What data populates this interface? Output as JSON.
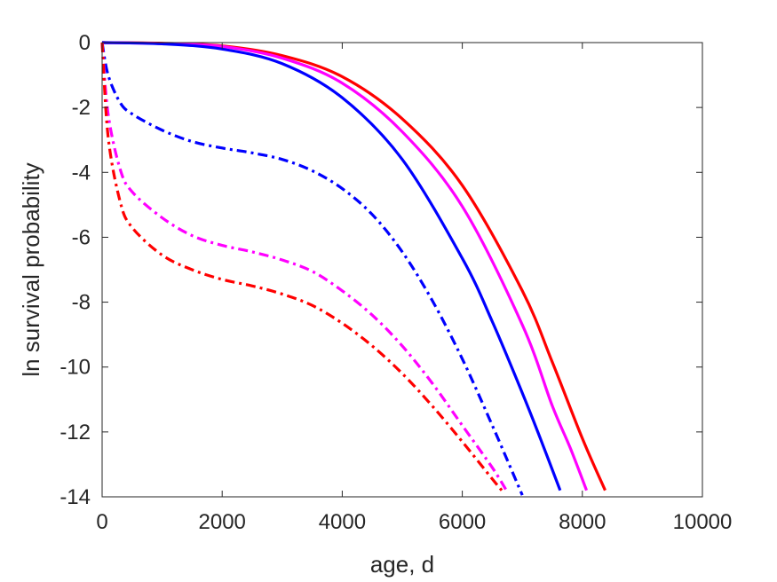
{
  "chart_data": {
    "type": "line",
    "title": "",
    "xlabel": "age, d",
    "ylabel": "ln survival probability",
    "xlim": [
      0,
      10000
    ],
    "ylim": [
      -14,
      0
    ],
    "xticks": [
      0,
      2000,
      4000,
      6000,
      8000,
      10000
    ],
    "yticks": [
      0,
      -2,
      -4,
      -6,
      -8,
      -10,
      -12,
      -14
    ],
    "xtick_labels": [
      "0",
      "2000",
      "4000",
      "6000",
      "8000",
      "10000"
    ],
    "ytick_labels": [
      "0",
      "-2",
      "-4",
      "-6",
      "-8",
      "-10",
      "-12",
      "-14"
    ],
    "grid": false,
    "legend": "none",
    "series": [
      {
        "color": "#ff0000",
        "style": "solid",
        "x": [
          0,
          1000,
          2000,
          3000,
          4000,
          5000,
          6000,
          7000,
          7500,
          8000,
          8380
        ],
        "y": [
          0,
          -0.02,
          -0.1,
          -0.4,
          -1.05,
          -2.35,
          -4.4,
          -7.65,
          -9.85,
          -12.2,
          -13.8
        ]
      },
      {
        "color": "#ff00ff",
        "style": "solid",
        "x": [
          0,
          1000,
          2000,
          3000,
          4000,
          5000,
          6000,
          7000,
          7500,
          7800,
          8070
        ],
        "y": [
          0,
          -0.03,
          -0.12,
          -0.48,
          -1.25,
          -2.75,
          -5.05,
          -8.7,
          -11.2,
          -12.5,
          -13.8
        ]
      },
      {
        "color": "#0000ff",
        "style": "solid",
        "x": [
          0,
          1000,
          2000,
          3000,
          4000,
          5000,
          6000,
          6500,
          7000,
          7300,
          7630
        ],
        "y": [
          0,
          -0.04,
          -0.2,
          -0.65,
          -1.7,
          -3.6,
          -6.65,
          -8.6,
          -10.8,
          -12.2,
          -13.8
        ]
      },
      {
        "color": "#0000ff",
        "style": "dashdot",
        "x": [
          0,
          100,
          300,
          500,
          1000,
          1500,
          2000,
          2500,
          3000,
          3500,
          4000,
          4500,
          5000,
          5500,
          6000,
          6500,
          7000
        ],
        "y": [
          0,
          -1.0,
          -1.85,
          -2.2,
          -2.7,
          -3.05,
          -3.25,
          -3.4,
          -3.6,
          -3.95,
          -4.5,
          -5.3,
          -6.45,
          -7.95,
          -9.75,
          -11.8,
          -13.95
        ]
      },
      {
        "color": "#ff00ff",
        "style": "dashdot",
        "x": [
          0,
          100,
          300,
          500,
          1000,
          1500,
          2000,
          2500,
          3000,
          3500,
          4000,
          4500,
          5000,
          5500,
          6000,
          6500,
          6750
        ],
        "y": [
          0,
          -2.2,
          -3.9,
          -4.6,
          -5.4,
          -5.95,
          -6.25,
          -6.45,
          -6.7,
          -7.05,
          -7.65,
          -8.4,
          -9.35,
          -10.5,
          -11.8,
          -13.1,
          -13.85
        ]
      },
      {
        "color": "#ff0000",
        "style": "dashdot",
        "x": [
          0,
          100,
          300,
          500,
          1000,
          1500,
          2000,
          2500,
          3000,
          3500,
          4000,
          4500,
          5000,
          5500,
          6000,
          6500,
          6680
        ],
        "y": [
          0,
          -2.9,
          -4.9,
          -5.7,
          -6.55,
          -7.0,
          -7.3,
          -7.5,
          -7.75,
          -8.1,
          -8.65,
          -9.35,
          -10.2,
          -11.2,
          -12.3,
          -13.45,
          -13.85
        ]
      }
    ]
  }
}
